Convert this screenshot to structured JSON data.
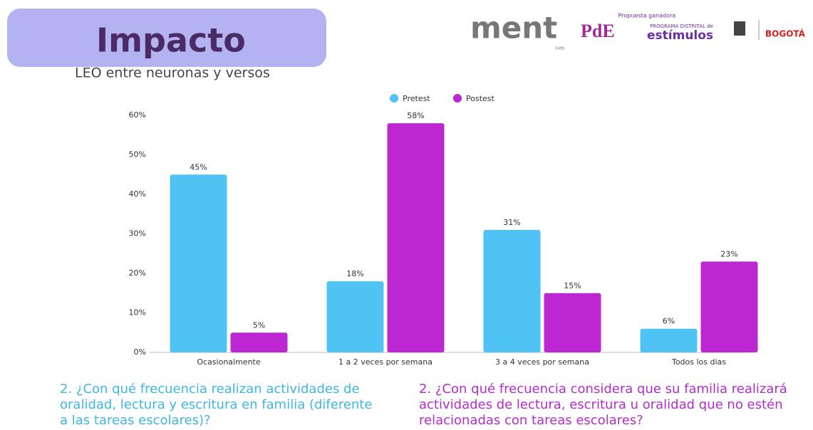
{
  "header": {
    "title": "Impacto",
    "subtitle": "LEO entre neuronas y versos",
    "logos": {
      "ment": "ment",
      "kids": "kids",
      "proposal": "Propuesta ganadora",
      "program": "PROGRAMA DISTRITAL de",
      "stimulus": "estímulos",
      "city": "BOGOTÁ"
    }
  },
  "chart_data": {
    "type": "bar",
    "categories": [
      "Ocasionalmente",
      "1 a 2 veces por semana",
      "3 a 4 veces por semana",
      "Todos los dias"
    ],
    "series": [
      {
        "name": "Pretest",
        "color": "#4ec3f4",
        "values": [
          45,
          18,
          31,
          6
        ],
        "value_labels": [
          "45%",
          "18%",
          "31%",
          "6%"
        ]
      },
      {
        "name": "Postest",
        "color": "#bd27d2",
        "values": [
          5,
          58,
          15,
          23
        ],
        "value_labels": [
          "5%",
          "58%",
          "15%",
          "23%"
        ]
      }
    ],
    "ylim": [
      0,
      60
    ],
    "yticks": [
      {
        "value": 0,
        "label": "0%"
      },
      {
        "value": 10,
        "label": "10%"
      },
      {
        "value": 20,
        "label": "20%"
      },
      {
        "value": 30,
        "label": "30%"
      },
      {
        "value": 40,
        "label": "40%"
      },
      {
        "value": 50,
        "label": "50%"
      },
      {
        "value": 60,
        "label": "60%"
      }
    ],
    "legend": "top",
    "grid": false
  },
  "questions": [
    {
      "color": "#3fb6e3",
      "lines": [
        "2. ¿Con qué frecuencia realizan actividades de",
        "oralidad, lectura y escritura en familia (diferente",
        "a las tareas escolares)?"
      ]
    },
    {
      "color": "#b12ec9",
      "lines": [
        "2. ¿Con qué frecuencia considera que su familia realizará",
        "actividades de lectura, escritura u oralidad que no estén",
        "relacionadas con tareas escolares?"
      ]
    }
  ]
}
